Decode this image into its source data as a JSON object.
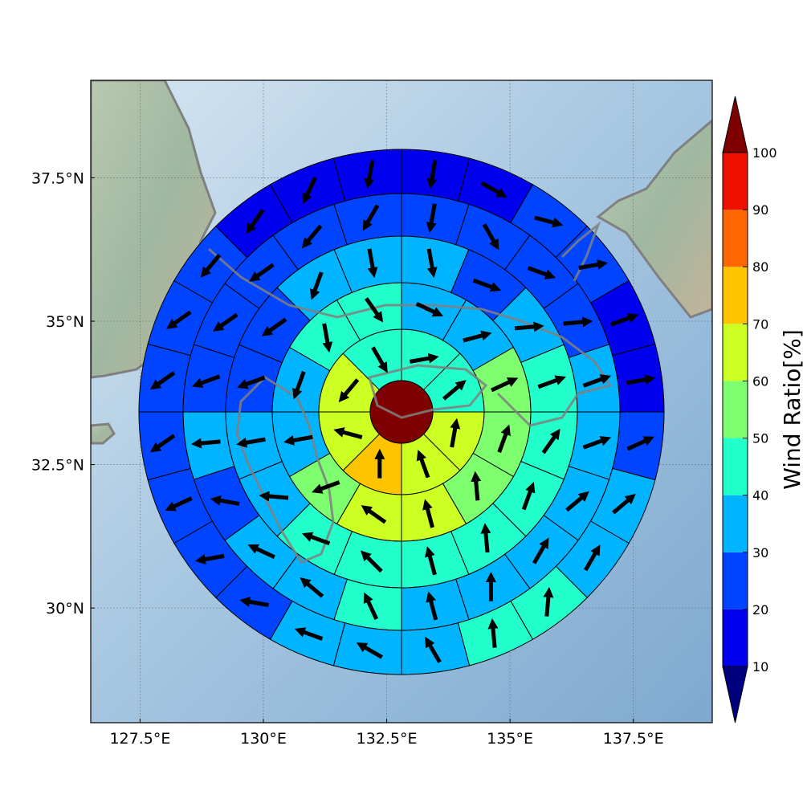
{
  "chart_data": {
    "type": "polar-sector-map",
    "description_units": "wind ratio percent per polar sector; arrow angle = direction in degrees counter-clockwise from east",
    "map": {
      "lon_range": [
        126.5,
        139.1
      ],
      "lat_range": [
        28.0,
        39.2
      ],
      "center": {
        "lon": 132.9,
        "lat": 33.85
      },
      "gridlines": true,
      "x_ticks": [
        {
          "value": 127.5,
          "label": "127.5°E"
        },
        {
          "value": 130.0,
          "label": "130°E"
        },
        {
          "value": 132.5,
          "label": "132.5°E"
        },
        {
          "value": 135.0,
          "label": "135°E"
        },
        {
          "value": 137.5,
          "label": "137.5°E"
        }
      ],
      "y_ticks": [
        {
          "value": 30.0,
          "label": "30°N"
        },
        {
          "value": 32.5,
          "label": "32.5°N"
        },
        {
          "value": 35.0,
          "label": "35°N"
        },
        {
          "value": 37.5,
          "label": "37.5°N"
        }
      ]
    },
    "center_disk_value": 100,
    "rings": [
      {
        "ring": 1,
        "sectors": 8,
        "values": [
          42,
          42,
          62,
          62,
          72,
          62,
          62,
          42
        ],
        "arrow_dir_deg": [
          10,
          40,
          80,
          110,
          90,
          165,
          230,
          300
        ]
      },
      {
        "ring": 2,
        "sectors": 12,
        "values": [
          33,
          33,
          55,
          55,
          55,
          62,
          62,
          55,
          33,
          33,
          42,
          42
        ],
        "arrow_dir_deg": [
          -25,
          15,
          25,
          70,
          95,
          105,
          145,
          200,
          190,
          250,
          280,
          305
        ]
      },
      {
        "ring": 3,
        "sectors": 16,
        "values": [
          33,
          25,
          33,
          42,
          42,
          42,
          42,
          42,
          42,
          42,
          33,
          33,
          25,
          25,
          33,
          33
        ],
        "arrow_dir_deg": [
          -80,
          -20,
          5,
          20,
          55,
          70,
          95,
          105,
          135,
          160,
          175,
          190,
          200,
          215,
          250,
          280
        ]
      },
      {
        "ring": 4,
        "sectors": 20,
        "values": [
          25,
          25,
          25,
          25,
          33,
          33,
          33,
          33,
          33,
          33,
          42,
          33,
          33,
          25,
          33,
          25,
          25,
          25,
          25,
          25
        ],
        "arrow_dir_deg": [
          -100,
          -60,
          -20,
          5,
          20,
          20,
          40,
          60,
          90,
          105,
          115,
          140,
          155,
          170,
          185,
          200,
          215,
          215,
          230,
          240
        ]
      },
      {
        "ring": 5,
        "sectors": 24,
        "values": [
          15,
          15,
          25,
          25,
          15,
          15,
          25,
          33,
          33,
          42,
          42,
          33,
          33,
          33,
          25,
          25,
          25,
          25,
          25,
          25,
          25,
          15,
          15,
          15
        ],
        "arrow_dir_deg": [
          -100,
          -30,
          -15,
          10,
          20,
          10,
          25,
          40,
          60,
          85,
          95,
          120,
          150,
          160,
          170,
          190,
          205,
          215,
          215,
          215,
          230,
          235,
          245,
          260
        ]
      }
    ],
    "colorbar": {
      "label": "Wind Ratio[%]",
      "ticks": [
        10,
        20,
        30,
        40,
        50,
        60,
        70,
        80,
        90,
        100
      ],
      "bins": [
        {
          "from": 10,
          "to": 20,
          "color": "#0000ee"
        },
        {
          "from": 20,
          "to": 30,
          "color": "#0044ff"
        },
        {
          "from": 30,
          "to": 40,
          "color": "#00b4ff"
        },
        {
          "from": 40,
          "to": 50,
          "color": "#22ffcc"
        },
        {
          "from": 50,
          "to": 60,
          "color": "#7dff70"
        },
        {
          "from": 60,
          "to": 70,
          "color": "#ccff22"
        },
        {
          "from": 70,
          "to": 80,
          "color": "#ffc400"
        },
        {
          "from": 80,
          "to": 90,
          "color": "#ff6600"
        },
        {
          "from": 90,
          "to": 100,
          "color": "#ee1100"
        }
      ],
      "under_color": "#00007f",
      "over_color": "#7f0000",
      "extend": "both"
    }
  }
}
